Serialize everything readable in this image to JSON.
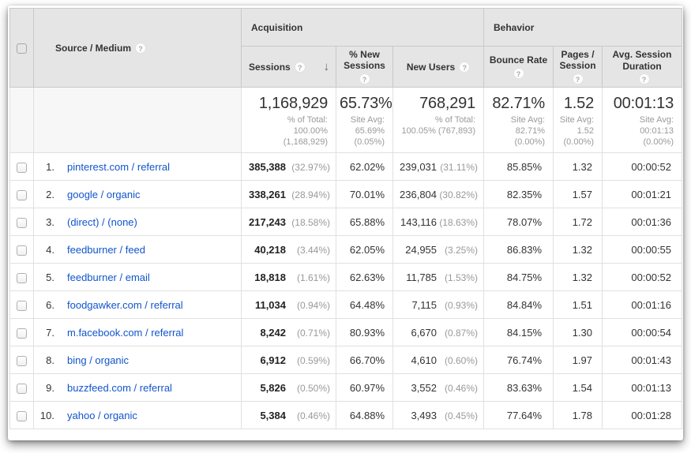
{
  "colors": {
    "link": "#1155cc",
    "header_bg": "#e5e5e5",
    "muted_pct": "#999999",
    "border": "#e0e0e0"
  },
  "table": {
    "dimension": {
      "label": "Source / Medium",
      "help_icon": "?"
    },
    "groups": {
      "acquisition": "Acquisition",
      "behavior": "Behavior"
    },
    "columns": {
      "sessions": "Sessions",
      "pct_new_sessions": "% New Sessions",
      "new_users": "New Users",
      "bounce_rate": "Bounce Rate",
      "pages_session": "Pages / Session",
      "avg_duration": "Avg. Session Duration",
      "sort_icon": "↓",
      "help_icon": "?"
    },
    "totals": {
      "sessions": {
        "value": "1,168,929",
        "sub": "% of Total:\n100.00%\n(1,168,929)"
      },
      "pct_new_sessions": {
        "value": "65.73%",
        "sub": "Site Avg:\n65.69%\n(0.05%)"
      },
      "new_users": {
        "value": "768,291",
        "sub": "% of Total:\n100.05% (767,893)"
      },
      "bounce_rate": {
        "value": "82.71%",
        "sub": "Site Avg:\n82.71%\n(0.00%)"
      },
      "pages_session": {
        "value": "1.52",
        "sub": "Site Avg:\n1.52\n(0.00%)"
      },
      "avg_duration": {
        "value": "00:01:13",
        "sub": "Site Avg:\n00:01:13\n(0.00%)"
      }
    },
    "rows": [
      {
        "rank": "1.",
        "source": "pinterest.com / referral",
        "sessions": "385,388",
        "sessions_pct": "(32.97%)",
        "pct_new_sessions": "62.02%",
        "new_users": "239,031",
        "new_users_pct": "(31.11%)",
        "bounce_rate": "85.85%",
        "pages_session": "1.32",
        "avg_duration": "00:00:52"
      },
      {
        "rank": "2.",
        "source": "google / organic",
        "sessions": "338,261",
        "sessions_pct": "(28.94%)",
        "pct_new_sessions": "70.01%",
        "new_users": "236,804",
        "new_users_pct": "(30.82%)",
        "bounce_rate": "82.35%",
        "pages_session": "1.57",
        "avg_duration": "00:01:21"
      },
      {
        "rank": "3.",
        "source": "(direct) / (none)",
        "sessions": "217,243",
        "sessions_pct": "(18.58%)",
        "pct_new_sessions": "65.88%",
        "new_users": "143,116",
        "new_users_pct": "(18.63%)",
        "bounce_rate": "78.07%",
        "pages_session": "1.72",
        "avg_duration": "00:01:36"
      },
      {
        "rank": "4.",
        "source": "feedburner / feed",
        "sessions": "40,218",
        "sessions_pct": "(3.44%)",
        "pct_new_sessions": "62.05%",
        "new_users": "24,955",
        "new_users_pct": "(3.25%)",
        "bounce_rate": "86.83%",
        "pages_session": "1.32",
        "avg_duration": "00:00:55"
      },
      {
        "rank": "5.",
        "source": "feedburner / email",
        "sessions": "18,818",
        "sessions_pct": "(1.61%)",
        "pct_new_sessions": "62.63%",
        "new_users": "11,785",
        "new_users_pct": "(1.53%)",
        "bounce_rate": "84.75%",
        "pages_session": "1.32",
        "avg_duration": "00:00:52"
      },
      {
        "rank": "6.",
        "source": "foodgawker.com / referral",
        "sessions": "11,034",
        "sessions_pct": "(0.94%)",
        "pct_new_sessions": "64.48%",
        "new_users": "7,115",
        "new_users_pct": "(0.93%)",
        "bounce_rate": "84.84%",
        "pages_session": "1.51",
        "avg_duration": "00:01:16"
      },
      {
        "rank": "7.",
        "source": "m.facebook.com / referral",
        "sessions": "8,242",
        "sessions_pct": "(0.71%)",
        "pct_new_sessions": "80.93%",
        "new_users": "6,670",
        "new_users_pct": "(0.87%)",
        "bounce_rate": "84.15%",
        "pages_session": "1.30",
        "avg_duration": "00:00:54"
      },
      {
        "rank": "8.",
        "source": "bing / organic",
        "sessions": "6,912",
        "sessions_pct": "(0.59%)",
        "pct_new_sessions": "66.70%",
        "new_users": "4,610",
        "new_users_pct": "(0.60%)",
        "bounce_rate": "76.74%",
        "pages_session": "1.97",
        "avg_duration": "00:01:43"
      },
      {
        "rank": "9.",
        "source": "buzzfeed.com / referral",
        "sessions": "5,826",
        "sessions_pct": "(0.50%)",
        "pct_new_sessions": "60.97%",
        "new_users": "3,552",
        "new_users_pct": "(0.46%)",
        "bounce_rate": "83.63%",
        "pages_session": "1.54",
        "avg_duration": "00:01:13"
      },
      {
        "rank": "10.",
        "source": "yahoo / organic",
        "sessions": "5,384",
        "sessions_pct": "(0.46%)",
        "pct_new_sessions": "64.88%",
        "new_users": "3,493",
        "new_users_pct": "(0.45%)",
        "bounce_rate": "77.64%",
        "pages_session": "1.78",
        "avg_duration": "00:01:28"
      }
    ]
  }
}
